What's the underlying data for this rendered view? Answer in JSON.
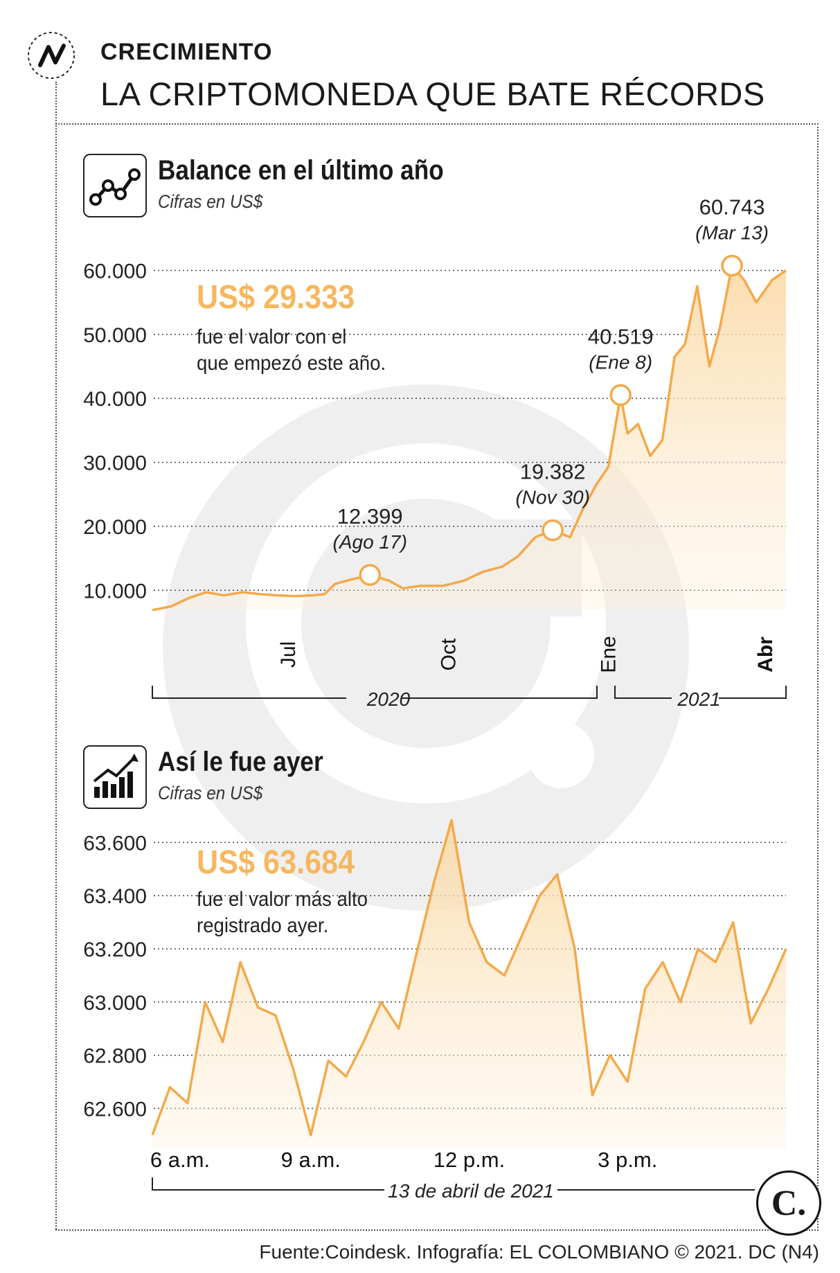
{
  "header": {
    "kicker": "CRECIMIENTO",
    "title": "LA CRIPTOMONEDA QUE BATE RÉCORDS"
  },
  "colors": {
    "accent": "#f7b75e",
    "line": "#f4a94a",
    "text": "#1a1a1a"
  },
  "chart_year": {
    "title": "Balance en el último año",
    "subtitle": "Cifras en US$",
    "highlight_value": "US$ 29.333",
    "highlight_text": [
      "fue el valor con el",
      "que empezó este año."
    ],
    "y_tick_labels": [
      "60.000",
      "50.000",
      "40.000",
      "30.000",
      "20.000",
      "10.000"
    ],
    "x_tick_labels": [
      "Jul",
      "Oct",
      "Ene",
      "Abr"
    ],
    "period_labels": [
      "2020",
      "2021"
    ],
    "callouts": [
      {
        "value": "12.399",
        "date": "(Ago 17)"
      },
      {
        "value": "19.382",
        "date": "(Nov 30)"
      },
      {
        "value": "40.519",
        "date": "(Ene 8)"
      },
      {
        "value": "60.743",
        "date": "(Mar 13)"
      }
    ]
  },
  "chart_day": {
    "title": "Así le fue ayer",
    "subtitle": "Cifras en US$",
    "highlight_value": "US$ 63.684",
    "highlight_text": [
      "fue el valor más alto",
      "registrado ayer."
    ],
    "y_tick_labels": [
      "63.600",
      "63.400",
      "63.200",
      "63.000",
      "62.800",
      "62.600"
    ],
    "x_tick_labels": [
      "6 a.m.",
      "9 a.m.",
      "12 p.m.",
      "3 p.m."
    ],
    "period_label": "13 de abril de 2021"
  },
  "footer": {
    "source": "Fuente:Coindesk. Infografía: EL COLOMBIANO © 2021. DC (N4)",
    "logo_letter": "C."
  },
  "chart_data": [
    {
      "type": "area",
      "title": "Balance en el último año",
      "ylabel": "Cifras en US$",
      "ylim": [
        7000,
        62000
      ],
      "x_ticks": [
        "Jul",
        "Oct",
        "Ene",
        "Abr"
      ],
      "x": [
        "2020-04-14",
        "2020-04-25",
        "2020-05-05",
        "2020-05-15",
        "2020-05-25",
        "2020-06-05",
        "2020-06-15",
        "2020-06-25",
        "2020-07-05",
        "2020-07-15",
        "2020-07-22",
        "2020-07-28",
        "2020-08-05",
        "2020-08-17",
        "2020-08-28",
        "2020-09-05",
        "2020-09-15",
        "2020-09-28",
        "2020-10-10",
        "2020-10-21",
        "2020-11-01",
        "2020-11-10",
        "2020-11-20",
        "2020-11-30",
        "2020-12-10",
        "2020-12-17",
        "2020-12-25",
        "2021-01-01",
        "2021-01-08",
        "2021-01-12",
        "2021-01-18",
        "2021-01-25",
        "2021-02-01",
        "2021-02-08",
        "2021-02-14",
        "2021-02-21",
        "2021-02-28",
        "2021-03-06",
        "2021-03-13",
        "2021-03-20",
        "2021-03-27",
        "2021-04-05",
        "2021-04-13"
      ],
      "y": [
        6900,
        7500,
        8800,
        9700,
        9200,
        9700,
        9400,
        9200,
        9100,
        9200,
        9400,
        11000,
        11600,
        12399,
        11500,
        10300,
        10700,
        10700,
        11500,
        12900,
        13700,
        15300,
        18300,
        19382,
        18300,
        22500,
        26500,
        29333,
        40519,
        34500,
        36000,
        31000,
        33500,
        46500,
        48500,
        57500,
        45000,
        51000,
        60743,
        58500,
        55000,
        58500,
        60000
      ],
      "callouts": [
        {
          "x": "2020-08-17",
          "y": 12399,
          "label": "12.399",
          "date": "(Ago 17)"
        },
        {
          "x": "2020-11-30",
          "y": 19382,
          "label": "19.382",
          "date": "(Nov 30)"
        },
        {
          "x": "2021-01-08",
          "y": 40519,
          "label": "40.519",
          "date": "(Ene 8)"
        },
        {
          "x": "2021-03-13",
          "y": 60743,
          "label": "60.743",
          "date": "(Mar 13)"
        }
      ]
    },
    {
      "type": "area",
      "title": "Así le fue ayer",
      "ylabel": "Cifras en US$",
      "ylim": [
        62450,
        63700
      ],
      "x_ticks": [
        "6 a.m.",
        "9 a.m.",
        "12 p.m.",
        "3 p.m."
      ],
      "x": [
        "6:00",
        "6:20",
        "6:40",
        "7:00",
        "7:20",
        "7:40",
        "8:00",
        "8:20",
        "8:40",
        "9:00",
        "9:20",
        "9:40",
        "10:00",
        "10:20",
        "10:40",
        "11:00",
        "11:20",
        "11:40",
        "12:00",
        "12:20",
        "12:40",
        "13:00",
        "13:20",
        "13:40",
        "14:00",
        "14:20",
        "14:40",
        "15:00",
        "15:20",
        "15:40",
        "16:00",
        "16:20",
        "16:40",
        "17:00",
        "17:20",
        "17:40",
        "18:00"
      ],
      "y": [
        62500,
        62680,
        62620,
        63000,
        62850,
        63150,
        62980,
        62950,
        62750,
        62500,
        62780,
        62720,
        62850,
        63000,
        62900,
        63180,
        63450,
        63684,
        63300,
        63150,
        63100,
        63250,
        63400,
        63480,
        63200,
        62650,
        62800,
        62700,
        63050,
        63150,
        63000,
        63200,
        63150,
        63300,
        62920,
        63050,
        63200
      ]
    }
  ]
}
